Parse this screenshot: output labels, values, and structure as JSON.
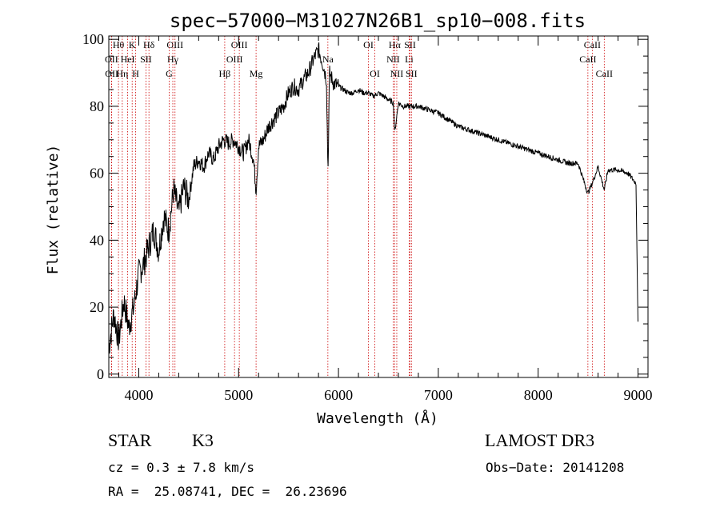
{
  "chart_data": {
    "type": "line",
    "title": "spec−57000−M31027N26B1_sp10−008.fits",
    "xlabel": "Wavelength (Å)",
    "ylabel": "Flux (relative)",
    "xlim": [
      3700,
      9100
    ],
    "ylim": [
      -1,
      101
    ],
    "xticks": [
      4000,
      5000,
      6000,
      7000,
      8000,
      9000
    ],
    "yticks": [
      0,
      20,
      40,
      60,
      80,
      100
    ],
    "series": [
      {
        "name": "flux",
        "x": [
          3700,
          3750,
          3800,
          3850,
          3900,
          3950,
          4000,
          4050,
          4100,
          4150,
          4200,
          4250,
          4300,
          4350,
          4400,
          4450,
          4500,
          4550,
          4600,
          4650,
          4700,
          4750,
          4800,
          4850,
          4900,
          4950,
          5000,
          5050,
          5100,
          5150,
          5175,
          5200,
          5250,
          5300,
          5350,
          5400,
          5450,
          5500,
          5550,
          5600,
          5650,
          5700,
          5750,
          5800,
          5850,
          5880,
          5895,
          5910,
          5950,
          6000,
          6050,
          6100,
          6150,
          6200,
          6250,
          6300,
          6350,
          6400,
          6450,
          6500,
          6550,
          6563,
          6600,
          6650,
          6700,
          6800,
          6900,
          7000,
          7100,
          7200,
          7300,
          7400,
          7500,
          7600,
          7700,
          7800,
          7900,
          8000,
          8100,
          8200,
          8300,
          8400,
          8498,
          8542,
          8600,
          8662,
          8700,
          8800,
          8900,
          8980,
          9000
        ],
        "y": [
          8,
          18,
          10,
          22,
          14,
          20,
          30,
          33,
          38,
          43,
          37,
          47,
          43,
          55,
          48,
          56,
          52,
          62,
          64,
          62,
          66,
          64,
          68,
          70,
          69,
          70,
          68,
          66,
          70,
          64,
          55,
          68,
          70,
          74,
          76,
          78,
          80,
          84,
          86,
          85,
          88,
          90,
          94,
          97,
          92,
          88,
          60,
          90,
          87,
          86,
          85,
          84,
          84,
          85,
          84,
          84,
          83,
          84,
          83,
          82,
          81,
          72,
          81,
          80,
          80,
          80,
          79,
          78,
          76,
          74,
          73,
          72,
          71,
          70,
          69,
          68,
          67,
          66,
          65,
          64,
          63,
          63,
          54,
          57,
          62,
          55,
          61,
          61,
          60,
          57,
          15
        ]
      }
    ],
    "lines": [
      {
        "label": "Hθ",
        "x": 3797,
        "row": 0
      },
      {
        "label": "OII",
        "x": 3727,
        "row": 1
      },
      {
        "label": "OII",
        "x": 3729,
        "row": 2
      },
      {
        "label": "Hη",
        "x": 3835,
        "row": 2
      },
      {
        "label": "K",
        "x": 3934,
        "row": 0
      },
      {
        "label": "HeI",
        "x": 3889,
        "row": 1
      },
      {
        "label": "H",
        "x": 3969,
        "row": 2
      },
      {
        "label": "Hδ",
        "x": 4102,
        "row": 0
      },
      {
        "label": "SII",
        "x": 4072,
        "row": 1
      },
      {
        "label": "OIII",
        "x": 4363,
        "row": 0
      },
      {
        "label": "Hγ",
        "x": 4341,
        "row": 1
      },
      {
        "label": "G",
        "x": 4305,
        "row": 2
      },
      {
        "label": "Hβ",
        "x": 4861,
        "row": 2
      },
      {
        "label": "OIII",
        "x": 5007,
        "row": 0
      },
      {
        "label": "OIII",
        "x": 4959,
        "row": 1
      },
      {
        "label": "Mg",
        "x": 5175,
        "row": 2
      },
      {
        "label": "Na",
        "x": 5894,
        "row": 1
      },
      {
        "label": "OI",
        "x": 6300,
        "row": 0
      },
      {
        "label": "OI",
        "x": 6364,
        "row": 2
      },
      {
        "label": "Hα",
        "x": 6563,
        "row": 0
      },
      {
        "label": "NII",
        "x": 6548,
        "row": 1
      },
      {
        "label": "NII",
        "x": 6584,
        "row": 2
      },
      {
        "label": "SII",
        "x": 6717,
        "row": 0
      },
      {
        "label": "Li",
        "x": 6708,
        "row": 1
      },
      {
        "label": "SII",
        "x": 6731,
        "row": 2
      },
      {
        "label": "CaII",
        "x": 8542,
        "row": 0
      },
      {
        "label": "CaII",
        "x": 8498,
        "row": 1
      },
      {
        "label": "CaII",
        "x": 8662,
        "row": 2
      }
    ]
  },
  "info": {
    "class_label": "STAR",
    "subclass": "K3",
    "survey": "LAMOST DR3",
    "cz": "cz = 0.3 ± 7.8 km/s",
    "obs_date": "Obs−Date: 20141208",
    "coords": "RA =  25.08741, DEC =  26.23696"
  }
}
